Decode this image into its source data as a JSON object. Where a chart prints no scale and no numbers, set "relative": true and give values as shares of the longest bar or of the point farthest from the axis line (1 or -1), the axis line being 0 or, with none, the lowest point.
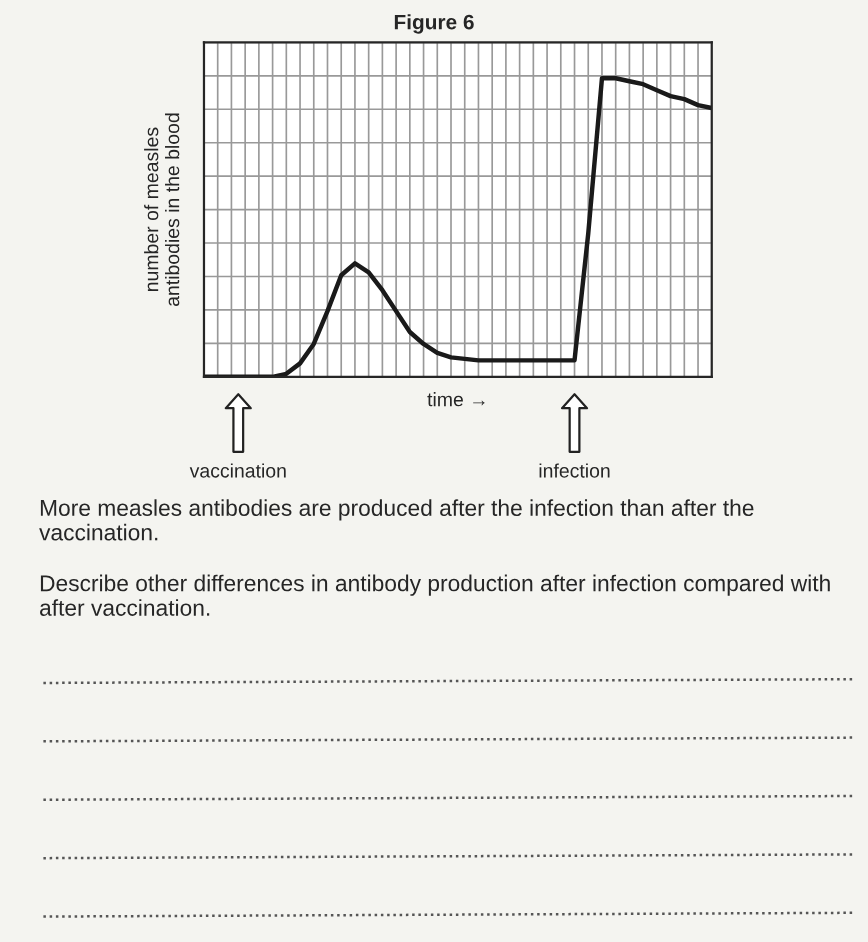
{
  "chart_data": {
    "type": "line",
    "title": "Figure 6",
    "ylabel": "number of measles\nantibodies in the blood",
    "xlabel": "time →",
    "relative": true,
    "grid": true,
    "color": "#1a1a1a",
    "categories": [
      null,
      null,
      null,
      null,
      null,
      null,
      null,
      null,
      null,
      null,
      null,
      null,
      null,
      null,
      null,
      null,
      null,
      null,
      null,
      null,
      null,
      null,
      null,
      null,
      null,
      null,
      null,
      null,
      null,
      null,
      null,
      null,
      null,
      null,
      null,
      null,
      null,
      null
    ],
    "values": [
      0,
      0,
      0,
      0,
      0,
      0,
      0.01,
      0.045,
      0.11,
      0.22,
      0.34,
      0.38,
      0.35,
      0.29,
      0.22,
      0.15,
      0.11,
      0.08,
      0.065,
      0.06,
      0.055,
      0.055,
      0.055,
      0.055,
      0.055,
      0.055,
      0.055,
      0.055,
      0.48,
      1.0,
      1.0,
      0.99,
      0.98,
      0.96,
      0.94,
      0.93,
      0.91,
      0.9
    ],
    "annotations": [
      "vaccination",
      "infection",
      "More measles antibodies are produced after the infection than after the vaccination.",
      "Describe other differences in antibody production after infection compared with after vaccination."
    ]
  }
}
